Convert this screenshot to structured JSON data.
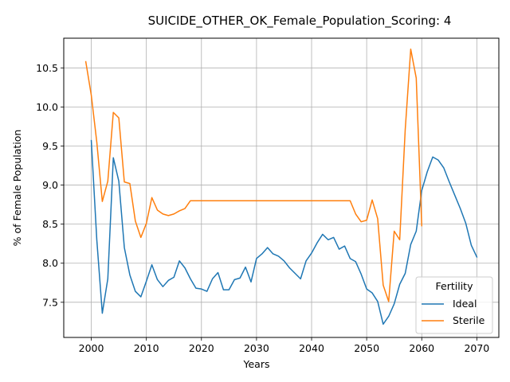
{
  "chart_data": {
    "type": "line",
    "title": "SUICIDE_OTHER_OK_Female_Population_Scoring: 4",
    "xlabel": "Years",
    "ylabel": "% of Female Population",
    "xlim": [
      1995,
      2074
    ],
    "ylim": [
      7.05,
      10.88
    ],
    "xticks": [
      2000,
      2010,
      2020,
      2030,
      2040,
      2050,
      2060,
      2070
    ],
    "yticks": [
      7.5,
      8.0,
      8.5,
      9.0,
      9.5,
      10.0,
      10.5
    ],
    "xtick_labels": [
      "2000",
      "2010",
      "2020",
      "2030",
      "2040",
      "2050",
      "2060",
      "2070"
    ],
    "ytick_labels": [
      "7.5",
      "8.0",
      "8.5",
      "9.0",
      "9.5",
      "10.0",
      "10.5"
    ],
    "grid": true,
    "legend": {
      "title": "Fertility",
      "placement": "lower-right"
    },
    "series": [
      {
        "name": "Ideal",
        "color": "#1f77b4",
        "x": [
          2000,
          2001,
          2002,
          2003,
          2004,
          2005,
          2006,
          2007,
          2008,
          2009,
          2010,
          2011,
          2012,
          2013,
          2014,
          2015,
          2016,
          2017,
          2018,
          2019,
          2020,
          2021,
          2022,
          2023,
          2024,
          2025,
          2026,
          2027,
          2028,
          2029,
          2030,
          2031,
          2032,
          2033,
          2034,
          2035,
          2036,
          2037,
          2038,
          2039,
          2040,
          2041,
          2042,
          2043,
          2044,
          2045,
          2046,
          2047,
          2048,
          2049,
          2050,
          2051,
          2052,
          2053,
          2054,
          2055,
          2056,
          2057,
          2058,
          2059,
          2060,
          2061,
          2062,
          2063,
          2064,
          2065,
          2066,
          2067,
          2068,
          2069,
          2070
        ],
        "y": [
          9.57,
          8.3,
          7.36,
          7.8,
          9.35,
          9.05,
          8.2,
          7.85,
          7.64,
          7.57,
          7.77,
          7.98,
          7.79,
          7.7,
          7.78,
          7.82,
          8.03,
          7.94,
          7.8,
          7.68,
          7.67,
          7.64,
          7.8,
          7.88,
          7.66,
          7.66,
          7.79,
          7.81,
          7.95,
          7.76,
          8.06,
          8.12,
          8.2,
          8.12,
          8.09,
          8.03,
          7.94,
          7.87,
          7.8,
          8.03,
          8.13,
          8.26,
          8.37,
          8.3,
          8.33,
          8.18,
          8.22,
          8.06,
          8.02,
          7.86,
          7.67,
          7.62,
          7.51,
          7.22,
          7.32,
          7.48,
          7.73,
          7.87,
          8.24,
          8.41,
          8.93,
          9.17,
          9.36,
          9.32,
          9.22,
          9.04,
          8.87,
          8.7,
          8.51,
          8.23,
          8.08
        ]
      },
      {
        "name": "Sterile",
        "color": "#ff7f0e",
        "x": [
          1999,
          2000,
          2001,
          2002,
          2003,
          2004,
          2005,
          2006,
          2007,
          2008,
          2009,
          2010,
          2011,
          2012,
          2013,
          2014,
          2015,
          2016,
          2017,
          2018,
          2019,
          2020,
          2021,
          2022,
          2023,
          2024,
          2025,
          2026,
          2027,
          2028,
          2029,
          2030,
          2031,
          2032,
          2033,
          2034,
          2035,
          2036,
          2037,
          2038,
          2039,
          2040,
          2041,
          2042,
          2043,
          2044,
          2045,
          2046,
          2047,
          2048,
          2049,
          2050,
          2051,
          2052,
          2053,
          2054,
          2055,
          2056,
          2057,
          2058,
          2059,
          2060
        ],
        "y": [
          10.58,
          10.15,
          9.55,
          8.79,
          9.05,
          9.93,
          9.86,
          9.04,
          9.02,
          8.54,
          8.33,
          8.51,
          8.84,
          8.68,
          8.63,
          8.61,
          8.63,
          8.67,
          8.7,
          8.8,
          8.8,
          8.8,
          8.8,
          8.8,
          8.8,
          8.8,
          8.8,
          8.8,
          8.8,
          8.8,
          8.8,
          8.8,
          8.8,
          8.8,
          8.8,
          8.8,
          8.8,
          8.8,
          8.8,
          8.8,
          8.8,
          8.8,
          8.8,
          8.8,
          8.8,
          8.8,
          8.8,
          8.8,
          8.8,
          8.63,
          8.53,
          8.55,
          8.81,
          8.57,
          7.72,
          7.51,
          8.41,
          8.3,
          9.71,
          10.74,
          10.37,
          8.48
        ]
      }
    ]
  }
}
